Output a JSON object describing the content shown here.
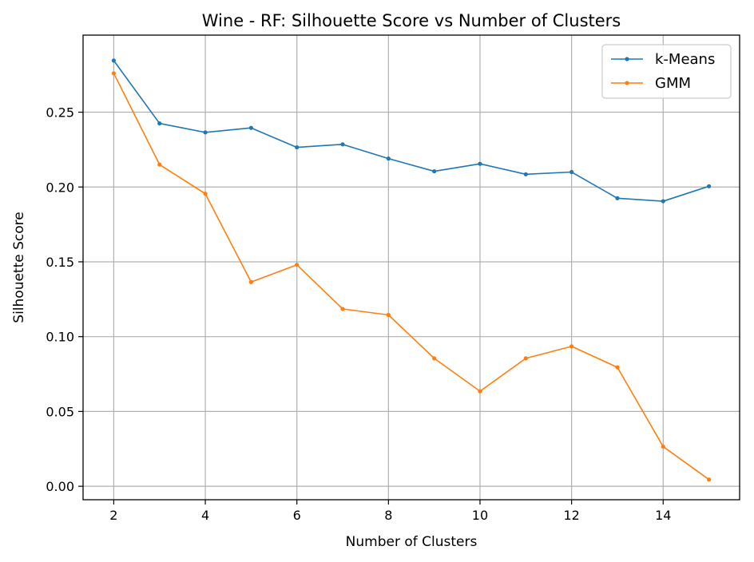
{
  "chart_data": {
    "type": "line",
    "title": "Wine - RF: Silhouette Score vs Number of Clusters",
    "xlabel": "Number of Clusters",
    "ylabel": "Silhouette Score",
    "x": [
      2,
      3,
      4,
      5,
      6,
      7,
      8,
      9,
      10,
      11,
      12,
      13,
      14,
      15
    ],
    "xticks": [
      "2",
      "4",
      "6",
      "8",
      "10",
      "12",
      "14"
    ],
    "yticks": [
      "0.00",
      "0.05",
      "0.10",
      "0.15",
      "0.20",
      "0.25"
    ],
    "xlim": [
      1.33,
      15.67
    ],
    "ylim": [
      -0.009,
      0.3015
    ],
    "grid": true,
    "legend_position": "top-right",
    "series": [
      {
        "name": "k-Means",
        "color": "#1f77b4",
        "values": [
          0.2845,
          0.2425,
          0.2365,
          0.2395,
          0.2265,
          0.2285,
          0.219,
          0.2105,
          0.2155,
          0.2085,
          0.21,
          0.1925,
          0.1905,
          0.2005
        ]
      },
      {
        "name": "GMM",
        "color": "#ff7f0e",
        "values": [
          0.276,
          0.215,
          0.1955,
          0.1365,
          0.148,
          0.1185,
          0.1145,
          0.0855,
          0.0635,
          0.0855,
          0.0935,
          0.0795,
          0.0265,
          0.0045
        ]
      }
    ]
  }
}
